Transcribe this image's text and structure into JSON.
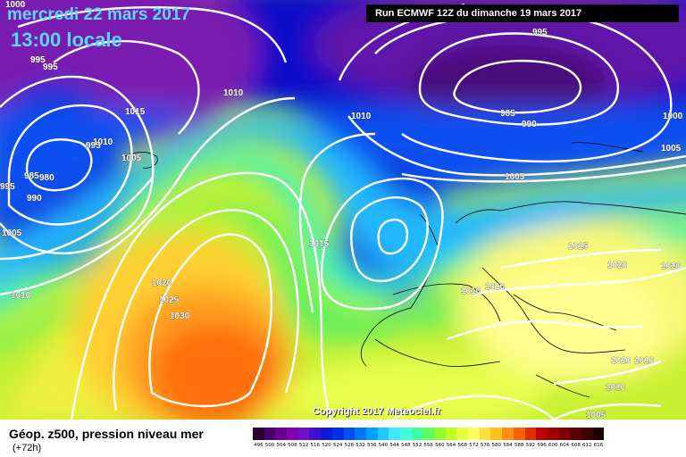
{
  "header": {
    "date": "mercredi 22 mars 2017",
    "time": "13:00 locale",
    "run": "Run ECMWF 12Z du dimanche 19 mars 2017"
  },
  "footer": {
    "variable": "Géop. z500, pression niveau mer",
    "lead": "(+72h)",
    "copyright": "Copyright 2017 Meteociel.fr"
  },
  "scale": {
    "labels": [
      "496",
      "500",
      "504",
      "508",
      "512",
      "516",
      "520",
      "524",
      "528",
      "532",
      "536",
      "540",
      "544",
      "548",
      "552",
      "556",
      "560",
      "564",
      "568",
      "572",
      "576",
      "580",
      "584",
      "588",
      "592",
      "596",
      "600",
      "604",
      "608",
      "612",
      "616"
    ],
    "colors": [
      "#2a0030",
      "#4b0064",
      "#6a0090",
      "#8000b4",
      "#7010c8",
      "#4010d0",
      "#1018d8",
      "#0030e8",
      "#0050f0",
      "#0078f8",
      "#00a0ff",
      "#20c8ff",
      "#40e8ff",
      "#40ffd8",
      "#40ffa0",
      "#60ff60",
      "#90ff30",
      "#c0ff20",
      "#e8ff40",
      "#ffff60",
      "#ffe040",
      "#ffc020",
      "#ff9010",
      "#ff6000",
      "#e03000",
      "#c00000",
      "#a00000",
      "#800000",
      "#600000",
      "#400000",
      "#200000"
    ]
  },
  "isobar_labels": [
    "1000",
    "995",
    "995",
    "1010",
    "1015",
    "995",
    "1010",
    "985",
    "980",
    "990",
    "1005",
    "1005",
    "995",
    "1010",
    "990",
    "985",
    "995",
    "1000",
    "1005",
    "1005",
    "1015",
    "1020",
    "1025",
    "1030",
    "1010",
    "1010",
    "1010",
    "1015",
    "1020",
    "1020",
    "1010",
    "1010",
    "1010",
    "1005"
  ]
}
